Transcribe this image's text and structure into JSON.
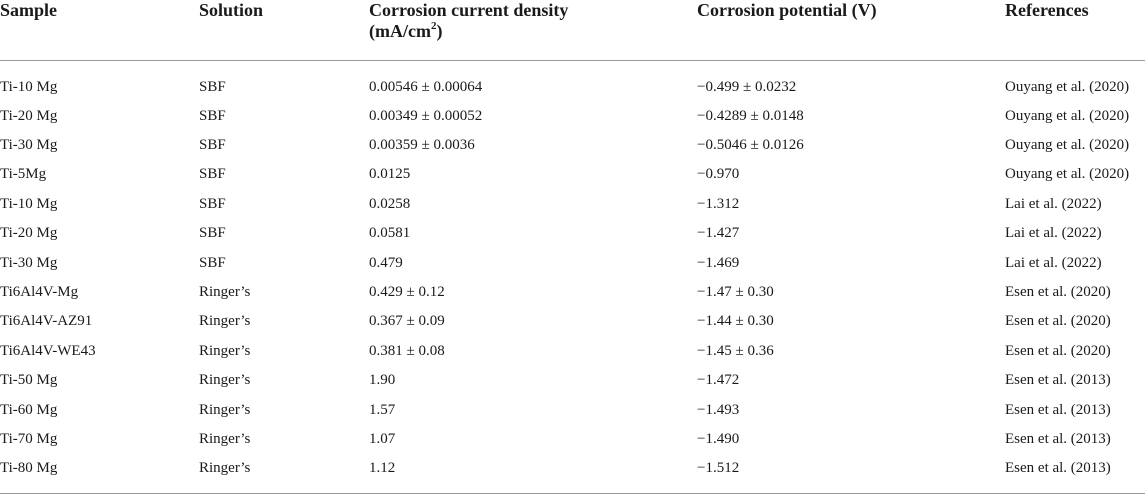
{
  "table": {
    "headers": {
      "sample": "Sample",
      "solution": "Solution",
      "current_line1": "Corrosion current density",
      "current_unit_prefix": "(mA/cm",
      "current_unit_sup": "2",
      "current_unit_suffix": ")",
      "potential": "Corrosion potential (V)",
      "references": "References"
    },
    "rows": [
      {
        "sample": "Ti-10 Mg",
        "solution": "SBF",
        "current": "0.00546 ± 0.00064",
        "potential": "−0.499 ± 0.0232",
        "reference": "Ouyang et al. (2020)"
      },
      {
        "sample": "Ti-20 Mg",
        "solution": "SBF",
        "current": "0.00349 ± 0.00052",
        "potential": "−0.4289 ± 0.0148",
        "reference": "Ouyang et al. (2020)"
      },
      {
        "sample": "Ti-30 Mg",
        "solution": "SBF",
        "current": "0.00359 ± 0.0036",
        "potential": "−0.5046 ± 0.0126",
        "reference": "Ouyang et al. (2020)"
      },
      {
        "sample": "Ti-5Mg",
        "solution": "SBF",
        "current": "0.0125",
        "potential": "−0.970",
        "reference": "Ouyang et al. (2020)"
      },
      {
        "sample": "Ti-10 Mg",
        "solution": "SBF",
        "current": "0.0258",
        "potential": "−1.312",
        "reference": "Lai et al. (2022)"
      },
      {
        "sample": "Ti-20 Mg",
        "solution": "SBF",
        "current": "0.0581",
        "potential": "−1.427",
        "reference": "Lai et al. (2022)"
      },
      {
        "sample": "Ti-30 Mg",
        "solution": "SBF",
        "current": "0.479",
        "potential": "−1.469",
        "reference": "Lai et al. (2022)"
      },
      {
        "sample": "Ti6Al4V-Mg",
        "solution": "Ringer’s",
        "current": "0.429 ± 0.12",
        "potential": "−1.47 ± 0.30",
        "reference": "Esen et al. (2020)"
      },
      {
        "sample": "Ti6Al4V-AZ91",
        "solution": "Ringer’s",
        "current": "0.367 ± 0.09",
        "potential": "−1.44 ± 0.30",
        "reference": "Esen et al. (2020)"
      },
      {
        "sample": "Ti6Al4V-WE43",
        "solution": "Ringer’s",
        "current": "0.381 ± 0.08",
        "potential": "−1.45 ± 0.36",
        "reference": "Esen et al. (2020)"
      },
      {
        "sample": "Ti-50 Mg",
        "solution": "Ringer’s",
        "current": "1.90",
        "potential": "−1.472",
        "reference": "Esen et al. (2013)"
      },
      {
        "sample": "Ti-60 Mg",
        "solution": "Ringer’s",
        "current": "1.57",
        "potential": "−1.493",
        "reference": "Esen et al. (2013)"
      },
      {
        "sample": "Ti-70 Mg",
        "solution": "Ringer’s",
        "current": "1.07",
        "potential": "−1.490",
        "reference": "Esen et al. (2013)"
      },
      {
        "sample": "Ti-80 Mg",
        "solution": "Ringer’s",
        "current": "1.12",
        "potential": "−1.512",
        "reference": "Esen et al. (2013)"
      }
    ]
  }
}
